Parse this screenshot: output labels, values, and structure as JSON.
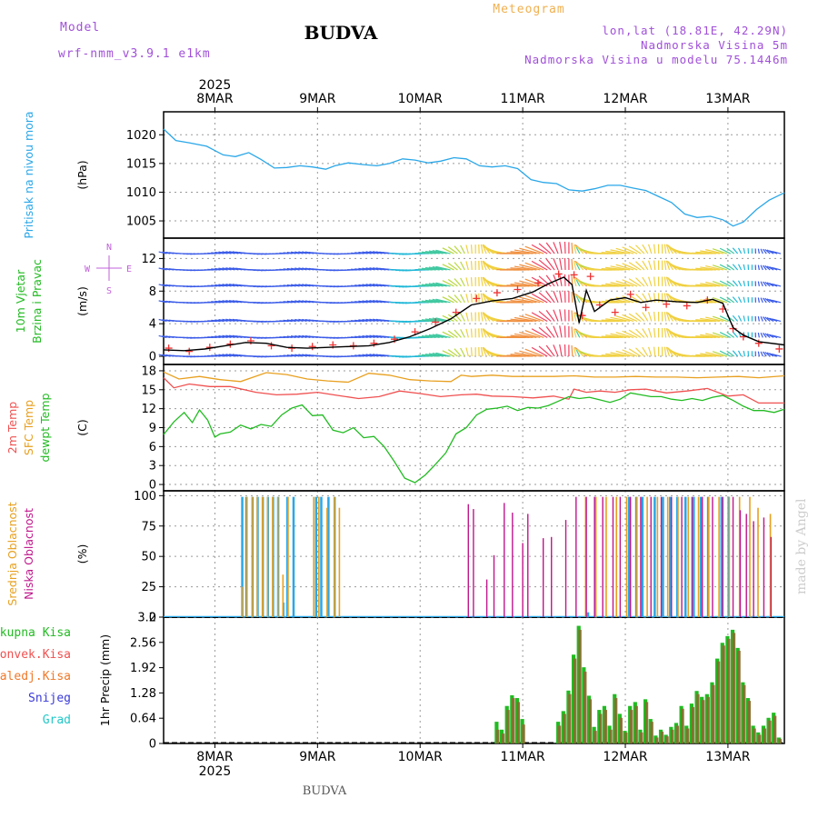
{
  "header": {
    "model_label": "Model",
    "model_name": "wrf-nmm_v3.9.1 e1km",
    "location_title": "BUDVA",
    "meteogram_label": "Meteogram",
    "coords": "lon,lat (18.81E, 42.29N)",
    "elevation": "Nadmorska Visina 5m",
    "model_elevation": "Nadmorska Visina u modelu 75.1446m"
  },
  "footer": {
    "location": "BUDVA",
    "credit": "made by Angel"
  },
  "time_axis": {
    "year": "2025",
    "dates": [
      "8MAR",
      "9MAR",
      "10MAR",
      "11MAR",
      "12MAR",
      "13MAR"
    ],
    "start": 7.5,
    "end": 13.55
  },
  "panels": [
    {
      "id": "pressure",
      "labels": [
        {
          "text": "Pritisak na nivou mora",
          "color": "#2aa7e8"
        }
      ],
      "unit": "(hPa)",
      "ylim": [
        1002,
        1024
      ],
      "yticks": [
        "1005",
        "1010",
        "1015",
        "1020"
      ]
    },
    {
      "id": "wind",
      "labels": [
        {
          "text": "10m Vjetar",
          "color": "#22bb22"
        },
        {
          "text": "Brzina i Pravac",
          "color": "#22bb22"
        }
      ],
      "unit": "(m/s)",
      "ylim": [
        -1,
        14.5
      ],
      "yticks": [
        "0",
        "4",
        "8",
        "12"
      ],
      "compass": {
        "n": "N",
        "s": "S",
        "w": "W",
        "e": "E"
      }
    },
    {
      "id": "temperature",
      "labels": [
        {
          "text": "2m Temp",
          "color": "#f05050"
        },
        {
          "text": "SFC Temp",
          "color": "#e8a020"
        },
        {
          "text": "dewpt Temp",
          "color": "#22bb22"
        }
      ],
      "unit": "(C)",
      "ylim": [
        -1,
        19
      ],
      "yticks": [
        "0",
        "3",
        "6",
        "9",
        "12",
        "15",
        "18"
      ]
    },
    {
      "id": "clouds",
      "labels": [
        {
          "text": "Visoka Oblacnost",
          "color": "#2aa7e8"
        },
        {
          "text": "Srednja Oblacnost",
          "color": "#e8a020"
        },
        {
          "text": "Niska Oblacnost",
          "color": "#c0168c"
        }
      ],
      "unit": "(%)",
      "ylim": [
        0,
        104
      ],
      "yticks": [
        "0",
        "25",
        "50",
        "75",
        "100"
      ]
    },
    {
      "id": "precip",
      "labels": [],
      "unit": "1hr Precip (mm)",
      "ylim": [
        0,
        3.2
      ],
      "yticks": [
        "0",
        "0.64",
        "1.28",
        "1.92",
        "2.56",
        "3.2"
      ],
      "legend": [
        {
          "text": "Ukupna Kisa",
          "color": "#22bb22"
        },
        {
          "text": "Konvek.Kisa",
          "color": "#f05050"
        },
        {
          "text": "Zaledj.Kisa",
          "color": "#f07828"
        },
        {
          "text": "Snijeg",
          "color": "#3a3ad8"
        },
        {
          "text": "Grad",
          "color": "#22c8c8"
        }
      ]
    }
  ],
  "chart_data": {
    "type": "line",
    "time_unit": "day of March 2025",
    "pressure": {
      "name": "Pritisak na nivou mora",
      "color": "#2aa7e8",
      "x": [
        7.5,
        7.62,
        7.75,
        7.92,
        8.08,
        8.2,
        8.33,
        8.45,
        8.58,
        8.7,
        8.83,
        8.95,
        9.08,
        9.17,
        9.3,
        9.45,
        9.58,
        9.7,
        9.83,
        9.95,
        10.08,
        10.2,
        10.33,
        10.45,
        10.58,
        10.7,
        10.83,
        10.95,
        11.08,
        11.2,
        11.33,
        11.45,
        11.58,
        11.7,
        11.83,
        11.95,
        12.08,
        12.2,
        12.33,
        12.45,
        12.58,
        12.7,
        12.83,
        12.95,
        13.05,
        13.15,
        13.28,
        13.4,
        13.55
      ],
      "y": [
        1021,
        1019,
        1018.6,
        1018,
        1016.5,
        1016.2,
        1016.9,
        1015.7,
        1014.2,
        1014.3,
        1014.6,
        1014.4,
        1014,
        1014.6,
        1015.1,
        1014.8,
        1014.6,
        1015,
        1015.8,
        1015.6,
        1015.1,
        1015.4,
        1016,
        1015.8,
        1014.6,
        1014.4,
        1014.6,
        1014.1,
        1012.2,
        1011.7,
        1011.5,
        1010.4,
        1010.2,
        1010.6,
        1011.2,
        1011.2,
        1010.7,
        1010.3,
        1009.2,
        1008.2,
        1006.2,
        1005.6,
        1005.8,
        1005.2,
        1004.1,
        1004.8,
        1007,
        1008.6,
        1009.9
      ]
    },
    "wind": {
      "speed_series_name": "Brzina",
      "speed_color": "#000000",
      "speed_x": [
        7.5,
        7.7,
        7.9,
        8.1,
        8.3,
        8.5,
        8.7,
        8.9,
        9.1,
        9.3,
        9.5,
        9.7,
        9.9,
        10.1,
        10.3,
        10.5,
        10.7,
        10.9,
        11.1,
        11.25,
        11.4,
        11.48,
        11.55,
        11.62,
        11.7,
        11.85,
        12.0,
        12.15,
        12.3,
        12.5,
        12.7,
        12.85,
        12.95,
        13.05,
        13.15,
        13.3,
        13.55
      ],
      "speed_y": [
        0.8,
        0.7,
        0.9,
        1.3,
        1.7,
        1.6,
        1.1,
        1.0,
        1.1,
        1.2,
        1.3,
        1.7,
        2.4,
        3.4,
        4.6,
        6.3,
        6.8,
        7.1,
        7.9,
        8.9,
        9.7,
        8.8,
        4.1,
        8.1,
        5.5,
        6.9,
        7.2,
        6.6,
        6.9,
        6.7,
        6.6,
        7.0,
        6.5,
        3.5,
        2.6,
        1.8,
        1.4
      ],
      "gust_color": "#ee3333",
      "gust_x": [
        7.55,
        7.75,
        7.95,
        8.15,
        8.35,
        8.55,
        8.75,
        8.95,
        9.15,
        9.35,
        9.55,
        9.75,
        9.95,
        10.15,
        10.35,
        10.55,
        10.75,
        10.95,
        11.15,
        11.35,
        11.5,
        11.58,
        11.66,
        11.75,
        11.9,
        12.05,
        12.2,
        12.4,
        12.6,
        12.8,
        12.95,
        13.05,
        13.15,
        13.3,
        13.5
      ],
      "gust_y": [
        1.0,
        0.6,
        1.1,
        1.5,
        1.9,
        1.3,
        1.0,
        1.2,
        1.4,
        1.3,
        1.6,
        2.1,
        3.0,
        4.2,
        5.4,
        7.1,
        7.8,
        8.2,
        9.0,
        10.1,
        10.0,
        5.0,
        9.8,
        6.3,
        5.4,
        7.6,
        6.0,
        6.4,
        6.2,
        6.9,
        5.8,
        3.4,
        2.4,
        1.6,
        0.9
      ],
      "barb_levels": [
        0,
        2.3,
        4.3,
        6.6,
        8.6,
        10.6,
        12.6,
        14.5
      ]
    },
    "temperature": {
      "series": [
        {
          "name": "2m Temp",
          "color": "#f05050",
          "x": [
            7.5,
            7.6,
            7.75,
            7.95,
            8.15,
            8.4,
            8.6,
            8.8,
            9.0,
            9.2,
            9.4,
            9.6,
            9.8,
            10.0,
            10.2,
            10.4,
            10.55,
            10.7,
            10.9,
            11.1,
            11.3,
            11.45,
            11.5,
            11.62,
            11.75,
            11.9,
            12.05,
            12.2,
            12.4,
            12.6,
            12.8,
            13.0,
            13.15,
            13.3,
            13.55
          ],
          "y": [
            16.9,
            15.3,
            15.9,
            15.5,
            15.5,
            14.6,
            14.2,
            14.3,
            14.6,
            14.1,
            13.6,
            13.9,
            14.8,
            14.4,
            13.9,
            14.2,
            14.3,
            14.0,
            13.9,
            13.7,
            14.0,
            13.5,
            15.1,
            14.6,
            14.8,
            14.6,
            15.0,
            15.1,
            14.5,
            14.8,
            15.2,
            14.0,
            14.2,
            12.9,
            12.9
          ]
        },
        {
          "name": "SFC Temp",
          "color": "#e8a020",
          "x": [
            7.5,
            7.65,
            7.85,
            8.05,
            8.25,
            8.5,
            8.7,
            8.9,
            9.1,
            9.3,
            9.5,
            9.7,
            9.9,
            10.1,
            10.3,
            10.4,
            10.5,
            10.7,
            10.9,
            11.1,
            11.3,
            11.5,
            11.7,
            11.9,
            12.1,
            12.3,
            12.5,
            12.7,
            12.9,
            13.1,
            13.3,
            13.55
          ],
          "y": [
            17.8,
            16.7,
            17.1,
            16.6,
            16.3,
            17.7,
            17.4,
            16.7,
            16.4,
            16.2,
            17.6,
            17.3,
            16.6,
            16.4,
            16.3,
            17.3,
            17.1,
            17.3,
            17.1,
            17.1,
            17.1,
            17.2,
            17.0,
            17.0,
            17.1,
            17.0,
            17.0,
            16.9,
            17.0,
            17.1,
            16.9,
            17.2
          ]
        },
        {
          "name": "dewpt Temp",
          "color": "#22bb22",
          "x": [
            7.5,
            7.6,
            7.7,
            7.78,
            7.85,
            7.93,
            8.0,
            8.05,
            8.15,
            8.25,
            8.35,
            8.45,
            8.55,
            8.65,
            8.75,
            8.85,
            8.95,
            9.05,
            9.15,
            9.25,
            9.35,
            9.45,
            9.55,
            9.65,
            9.75,
            9.85,
            9.95,
            10.05,
            10.15,
            10.25,
            10.35,
            10.45,
            10.55,
            10.65,
            10.75,
            10.85,
            10.95,
            11.05,
            11.15,
            11.25,
            11.35,
            11.45,
            11.55,
            11.65,
            11.75,
            11.85,
            11.95,
            12.05,
            12.15,
            12.25,
            12.35,
            12.45,
            12.55,
            12.65,
            12.75,
            12.85,
            12.95,
            13.05,
            13.15,
            13.25,
            13.35,
            13.45,
            13.55
          ],
          "y": [
            7.9,
            9.9,
            11.4,
            9.8,
            11.8,
            10.2,
            7.5,
            8.0,
            8.3,
            9.4,
            8.8,
            9.5,
            9.2,
            11.0,
            12.1,
            12.6,
            10.9,
            11.0,
            8.6,
            8.2,
            9.0,
            7.4,
            7.6,
            6.0,
            3.6,
            1.0,
            0.3,
            1.5,
            3.2,
            5.0,
            8.0,
            9.0,
            11.0,
            11.9,
            12.1,
            12.4,
            11.7,
            12.2,
            12.1,
            12.5,
            13.2,
            13.9,
            13.6,
            13.8,
            13.4,
            13.0,
            13.5,
            14.5,
            14.2,
            13.9,
            13.9,
            13.5,
            13.3,
            13.6,
            13.3,
            13.8,
            14.1,
            13.3,
            12.4,
            11.7,
            11.7,
            11.4,
            11.9
          ]
        }
      ]
    },
    "clouds": {
      "series_names": [
        "Visoka Oblacnost",
        "Srednja Oblacnost",
        "Niska Oblacnost"
      ],
      "colors": [
        "#2aa7e8",
        "#e8a020",
        "#c0168c"
      ],
      "high_x": [
        8.28,
        8.32,
        8.38,
        8.43,
        8.48,
        8.53,
        8.58,
        8.63,
        8.68,
        8.72,
        8.78,
        9.0,
        9.05,
        9.12,
        9.18,
        11.65,
        11.72,
        12.05,
        12.12,
        12.18,
        12.3,
        12.38,
        12.45,
        12.52,
        12.6,
        12.68,
        12.75,
        12.82,
        12.95,
        13.02
      ],
      "high_y": [
        99,
        99,
        99,
        99,
        99,
        99,
        99,
        99,
        12,
        99,
        99,
        99,
        99,
        99,
        99,
        4,
        99,
        99,
        99,
        99,
        99,
        99,
        99,
        99,
        99,
        99,
        99,
        99,
        99,
        99
      ],
      "mid_x": [
        8.25,
        8.3,
        8.35,
        8.4,
        8.45,
        8.5,
        8.55,
        8.6,
        8.65,
        8.7,
        8.95,
        9.0,
        9.08,
        9.15,
        9.2,
        11.6,
        11.7,
        11.8,
        11.9,
        12.0,
        12.1,
        12.2,
        12.3,
        12.4,
        12.5,
        12.6,
        12.7,
        12.8,
        12.9,
        13.0,
        13.1,
        13.2,
        13.28,
        13.4
      ],
      "mid_y": [
        25,
        99,
        99,
        99,
        99,
        99,
        99,
        99,
        35,
        99,
        99,
        99,
        90,
        99,
        90,
        99,
        99,
        99,
        99,
        99,
        99,
        99,
        99,
        99,
        99,
        99,
        99,
        99,
        99,
        99,
        99,
        99,
        90,
        85
      ],
      "low_x": [
        10.47,
        10.52,
        10.65,
        10.72,
        10.82,
        10.9,
        11.0,
        11.05,
        11.2,
        11.28,
        11.42,
        11.52,
        11.62,
        11.7,
        11.78,
        11.88,
        11.95,
        12.05,
        12.15,
        12.25,
        12.35,
        12.45,
        12.55,
        12.65,
        12.75,
        12.85,
        12.95,
        13.05,
        13.12,
        13.18,
        13.25,
        13.35,
        13.42
      ],
      "low_y": [
        93,
        89,
        31,
        51,
        94,
        86,
        61,
        85,
        65,
        66,
        80,
        99,
        99,
        99,
        99,
        99,
        99,
        99,
        99,
        99,
        99,
        99,
        99,
        99,
        99,
        99,
        99,
        99,
        88,
        85,
        79,
        82,
        66
      ]
    },
    "precip": {
      "series_names": [
        "Ukupna Kisa",
        "Konvek.Kisa"
      ],
      "colors": [
        "#22bb22",
        "#f05050"
      ],
      "x": [
        10.75,
        10.8,
        10.85,
        10.9,
        10.95,
        11.0,
        11.35,
        11.4,
        11.45,
        11.5,
        11.55,
        11.6,
        11.65,
        11.7,
        11.75,
        11.8,
        11.85,
        11.9,
        11.95,
        12.0,
        12.05,
        12.1,
        12.15,
        12.2,
        12.25,
        12.3,
        12.35,
        12.4,
        12.45,
        12.5,
        12.55,
        12.6,
        12.65,
        12.7,
        12.75,
        12.8,
        12.85,
        12.9,
        12.95,
        13.0,
        13.05,
        13.1,
        13.15,
        13.2,
        13.25,
        13.3,
        13.35,
        13.4,
        13.45,
        13.5
      ],
      "total": [
        0.55,
        0.35,
        0.95,
        1.22,
        1.15,
        0.62,
        0.55,
        0.82,
        1.34,
        2.25,
        2.98,
        1.93,
        1.21,
        0.42,
        0.85,
        0.95,
        0.45,
        1.25,
        0.75,
        0.32,
        0.95,
        1.05,
        0.35,
        1.12,
        0.62,
        0.2,
        0.35,
        0.22,
        0.42,
        0.52,
        0.95,
        0.45,
        1.01,
        1.33,
        1.18,
        1.25,
        1.55,
        2.15,
        2.55,
        2.72,
        2.88,
        2.42,
        1.55,
        1.15,
        0.45,
        0.28,
        0.45,
        0.65,
        0.78,
        0.15
      ],
      "convective": [
        0.35,
        0.25,
        0.85,
        1.15,
        1.05,
        0.48,
        0.45,
        0.75,
        1.25,
        2.15,
        2.88,
        1.82,
        1.12,
        0.32,
        0.75,
        0.85,
        0.35,
        1.15,
        0.65,
        0.28,
        0.85,
        0.95,
        0.28,
        1.05,
        0.55,
        0.15,
        0.3,
        0.18,
        0.35,
        0.45,
        0.88,
        0.38,
        0.92,
        1.25,
        1.1,
        1.18,
        1.48,
        2.08,
        2.48,
        2.65,
        2.8,
        2.35,
        1.48,
        1.08,
        0.38,
        0.22,
        0.38,
        0.58,
        0.7,
        0.12
      ]
    }
  }
}
